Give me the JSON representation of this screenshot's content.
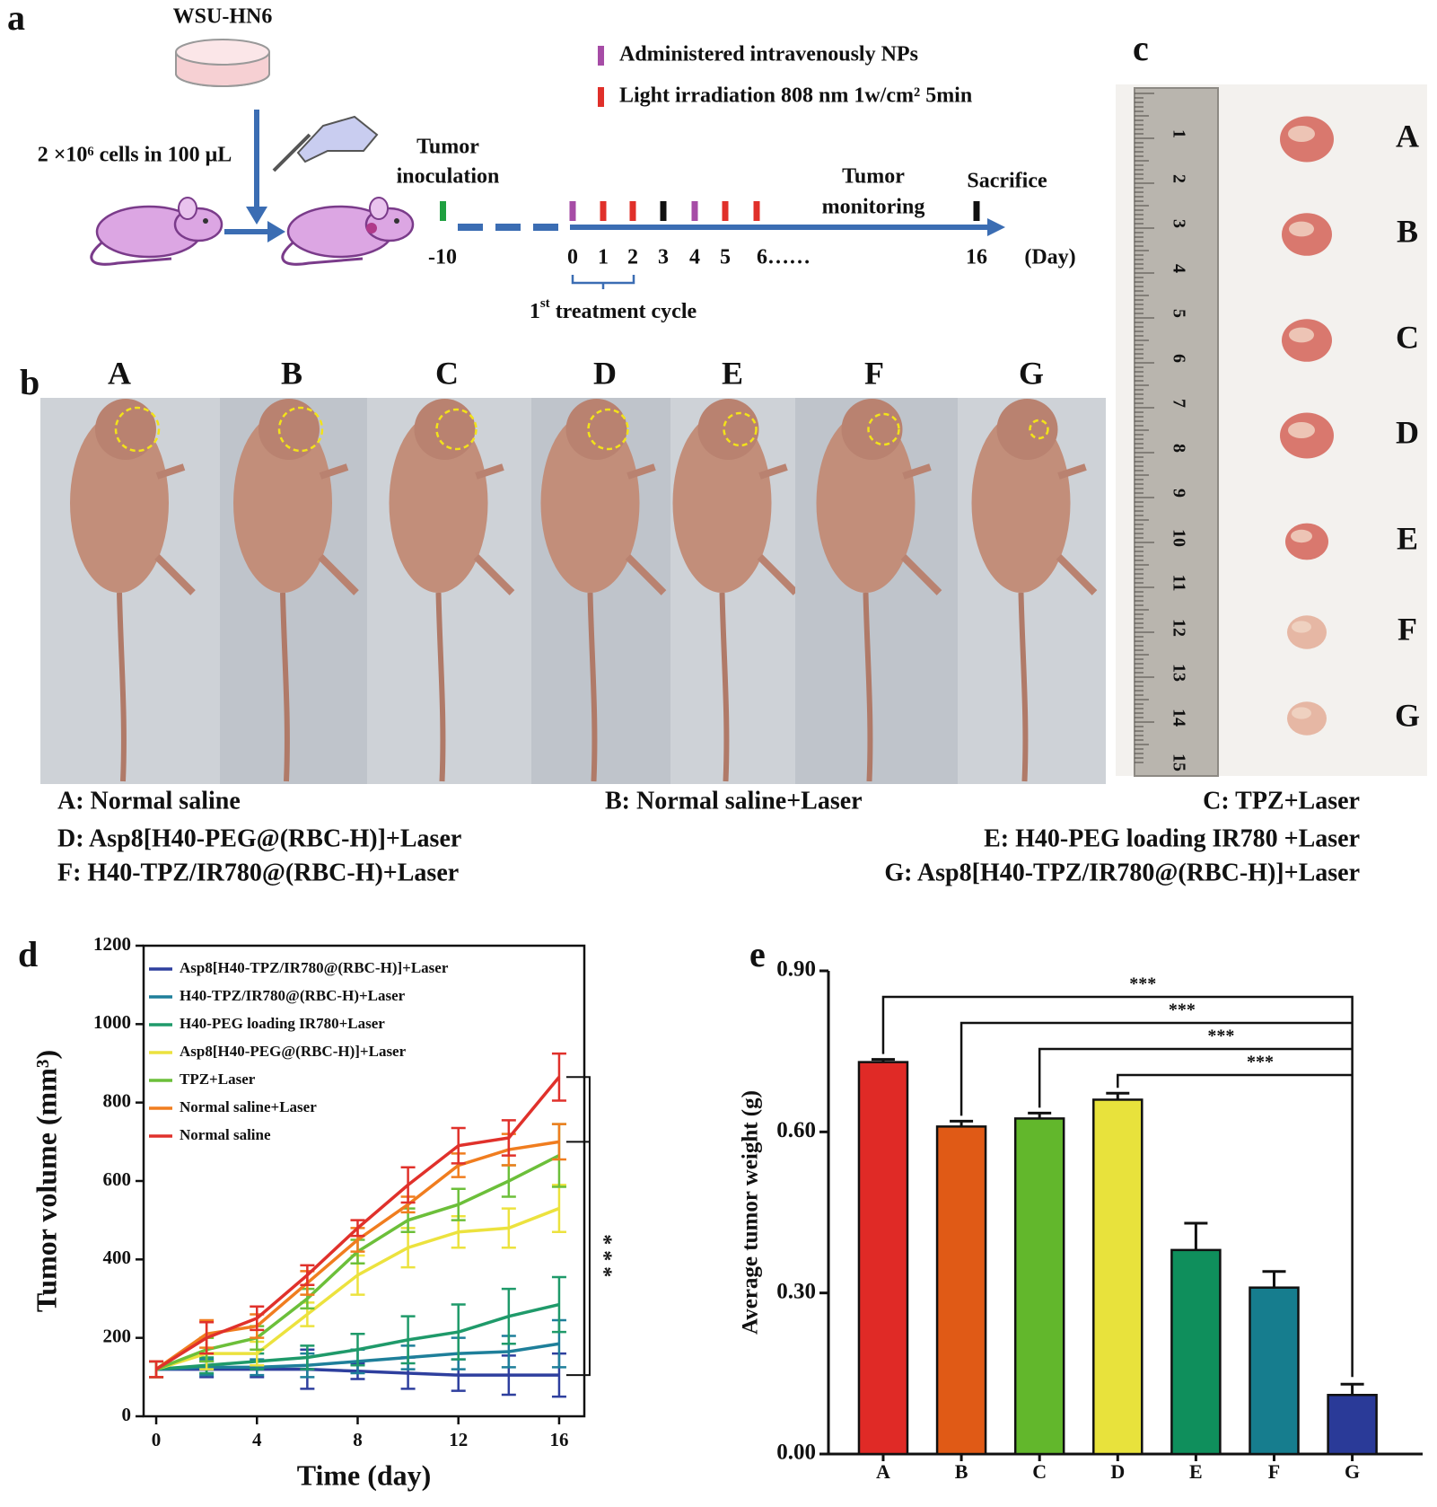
{
  "panel_labels": [
    "a",
    "b",
    "c",
    "d",
    "e"
  ],
  "schematic": {
    "cell_line": "WSU-HN6",
    "injection": "2 ×10⁶ cells in 100 μL",
    "inoculation": [
      "Tumor",
      "inoculation"
    ],
    "legend": [
      {
        "label": "Administered intravenously  NPs",
        "color": "#a64ca6"
      },
      {
        "label": "Light irradiation 808 nm 1w/cm² 5min",
        "color": "#e0302a"
      }
    ],
    "monitoring": [
      "Tumor",
      "monitoring"
    ],
    "sacrifice": "Sacrifice",
    "days": [
      "-10",
      "0",
      "1",
      "2",
      "3",
      "4",
      "5",
      "6……",
      "16"
    ],
    "day_unit": "(Day)",
    "cycle": {
      "num": "1",
      "sup": "st",
      "rest": " treatment cycle"
    }
  },
  "photos": {
    "labels": [
      "A",
      "B",
      "C",
      "D",
      "E",
      "F",
      "G"
    ]
  },
  "captions": [
    "A: Normal saline",
    "B: Normal saline+Laser",
    "C: TPZ+Laser",
    "D: Asp8[H40-PEG@(RBC-H)]+Laser",
    "E: H40-PEG loading IR780 +Laser",
    "F: H40-TPZ/IR780@(RBC-H)+Laser",
    "G: Asp8[H40-TPZ/IR780@(RBC-H)]+Laser"
  ],
  "tumors": {
    "labels": [
      "A",
      "B",
      "C",
      "D",
      "E",
      "F",
      "G"
    ],
    "ruler_numbers": [
      "1",
      "2",
      "3",
      "4",
      "5",
      "6",
      "7",
      "8",
      "9",
      "10",
      "11",
      "12",
      "13",
      "14",
      "15"
    ]
  },
  "chart_data": [
    {
      "type": "line",
      "xlabel": "Time (day)",
      "ylabel": "Tumor volume (mm³)",
      "x": [
        0,
        2,
        4,
        6,
        8,
        10,
        12,
        14,
        16
      ],
      "xlim": [
        -0.5,
        17
      ],
      "xticks": [
        0,
        4,
        8,
        12,
        16
      ],
      "ylim": [
        0,
        1200
      ],
      "yticks": [
        0,
        200,
        400,
        600,
        800,
        1000,
        1200
      ],
      "legend": "upper left",
      "annotation": "***",
      "series": [
        {
          "name": "Asp8[H40-TPZ/IR780@(RBC-H)]+Laser",
          "color": "#2e3f9e",
          "values": [
            120,
            120,
            120,
            120,
            115,
            110,
            105,
            105,
            105
          ],
          "errors": [
            20,
            20,
            20,
            50,
            20,
            40,
            40,
            50,
            55
          ]
        },
        {
          "name": "H40-TPZ/IR780@(RBC-H)+Laser",
          "color": "#1e7f9a",
          "values": [
            120,
            125,
            125,
            130,
            140,
            150,
            160,
            165,
            185
          ],
          "errors": [
            20,
            20,
            20,
            30,
            30,
            30,
            40,
            40,
            60
          ]
        },
        {
          "name": "H40-PEG loading IR780+Laser",
          "color": "#1f9a6a",
          "values": [
            120,
            130,
            140,
            150,
            170,
            195,
            215,
            255,
            285
          ],
          "errors": [
            20,
            20,
            20,
            30,
            40,
            60,
            70,
            70,
            70
          ]
        },
        {
          "name": "Asp8[H40-PEG@(RBC-H)]+Laser",
          "color": "#ece23e",
          "values": [
            120,
            160,
            160,
            260,
            360,
            430,
            470,
            480,
            530
          ],
          "errors": [
            20,
            40,
            30,
            30,
            50,
            50,
            40,
            50,
            60
          ]
        },
        {
          "name": "TPZ+Laser",
          "color": "#6cbf3a",
          "values": [
            120,
            170,
            200,
            300,
            420,
            500,
            540,
            600,
            665
          ],
          "errors": [
            20,
            30,
            30,
            25,
            30,
            30,
            40,
            40,
            80
          ]
        },
        {
          "name": "Normal saline+Laser",
          "color": "#f07d1f",
          "values": [
            120,
            210,
            230,
            340,
            450,
            540,
            640,
            680,
            700
          ],
          "errors": [
            20,
            35,
            30,
            30,
            30,
            20,
            30,
            40,
            45
          ]
        },
        {
          "name": "Normal saline",
          "color": "#e0312b",
          "values": [
            120,
            200,
            250,
            360,
            480,
            590,
            690,
            710,
            865
          ],
          "errors": [
            20,
            40,
            30,
            25,
            20,
            45,
            45,
            45,
            60
          ]
        }
      ]
    },
    {
      "type": "bar",
      "ylabel": "Average tumor weight (g)",
      "categories": [
        "A",
        "B",
        "C",
        "D",
        "E",
        "F",
        "G"
      ],
      "values": [
        0.73,
        0.61,
        0.625,
        0.66,
        0.38,
        0.31,
        0.11
      ],
      "errors": [
        0.005,
        0.01,
        0.01,
        0.012,
        0.05,
        0.03,
        0.02
      ],
      "colors": [
        "#e02a26",
        "#e05a16",
        "#62b72c",
        "#e8e23c",
        "#0f8f5c",
        "#167d8e",
        "#2a3a98"
      ],
      "ylim": [
        0,
        0.9
      ],
      "yticks": [
        {
          "value": 0,
          "label": "0.00"
        },
        {
          "value": 0.3,
          "label": "0.30"
        },
        {
          "value": 0.6,
          "label": "0.60"
        },
        {
          "value": 0.9,
          "label": "0.90"
        }
      ],
      "annotations": [
        {
          "groups": [
            "A",
            "G"
          ],
          "label": "***"
        },
        {
          "groups": [
            "B",
            "G"
          ],
          "label": "***"
        },
        {
          "groups": [
            "C",
            "G"
          ],
          "label": "***"
        },
        {
          "groups": [
            "D",
            "G"
          ],
          "label": "***"
        }
      ]
    }
  ]
}
